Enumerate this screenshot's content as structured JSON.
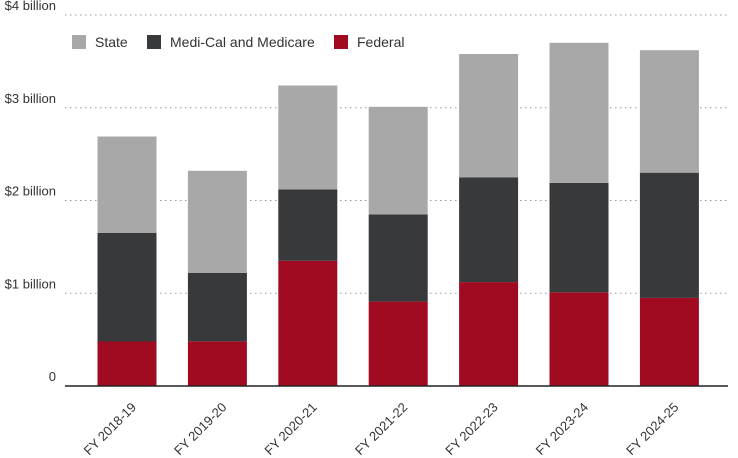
{
  "chart_data": {
    "type": "bar",
    "stacked": true,
    "title": "",
    "xlabel": "",
    "ylabel": "",
    "categories": [
      "FY 2018-19",
      "FY 2019-20",
      "FY 2020-21",
      "FY 2021-22",
      "FY 2022-23",
      "FY 2023-24",
      "FY 2024-25"
    ],
    "series": [
      {
        "name": "Federal",
        "color": "#a00b21",
        "values": [
          0.48,
          0.48,
          1.35,
          0.91,
          1.12,
          1.01,
          0.95
        ]
      },
      {
        "name": "Medi-Cal and Medicare",
        "color": "#38393b",
        "values": [
          1.17,
          0.74,
          0.77,
          0.94,
          1.13,
          1.18,
          1.35
        ]
      },
      {
        "name": "State",
        "color": "#a8a8a8",
        "values": [
          1.04,
          1.1,
          1.12,
          1.16,
          1.33,
          1.51,
          1.32
        ]
      }
    ],
    "ylim": [
      0,
      4
    ],
    "yticks": [
      {
        "value": 0,
        "label": "0"
      },
      {
        "value": 1,
        "label": "$1 billion"
      },
      {
        "value": 2,
        "label": "$2 billion"
      },
      {
        "value": 3,
        "label": "$3 billion"
      },
      {
        "value": 4,
        "label": "$4 billion"
      }
    ],
    "legend": {
      "position": "top-left",
      "order": [
        "State",
        "Medi-Cal and Medicare",
        "Federal"
      ]
    },
    "grid": true
  }
}
